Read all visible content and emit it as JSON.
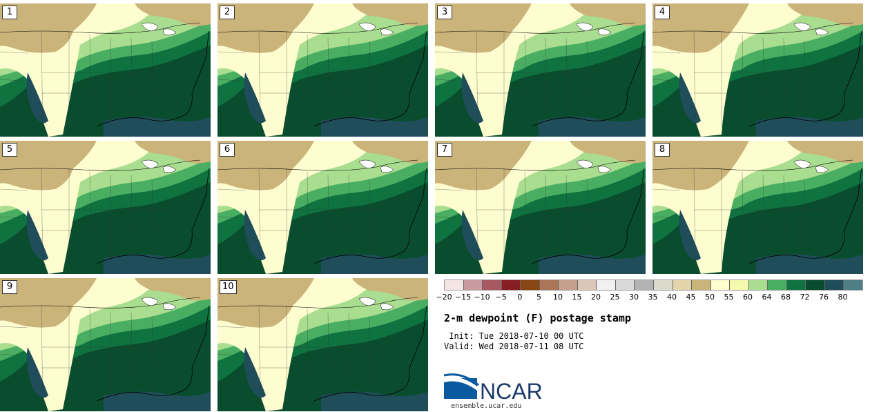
{
  "panels": [
    "1",
    "2",
    "3",
    "4",
    "5",
    "6",
    "7",
    "8",
    "9",
    "10"
  ],
  "colorbar": {
    "colors": [
      "#f4e4e4",
      "#c99aa0",
      "#a85860",
      "#861d22",
      "#8a4514",
      "#ab7658",
      "#c4a08c",
      "#dcc6b8",
      "#f1f1f1",
      "#d9d9d9",
      "#b3b3b3",
      "#dbdbcb",
      "#e4d4aa",
      "#cbb47a",
      "#fdfdd0",
      "#f5f9ad",
      "#a9dd90",
      "#4aae62",
      "#0f7340",
      "#0a4d2e",
      "#1f4d5a",
      "#4f7f86"
    ],
    "ticks": [
      "−20",
      "−15",
      "−10",
      "−5",
      "0",
      "5",
      "10",
      "15",
      "20",
      "25",
      "30",
      "35",
      "40",
      "45",
      "50",
      "55",
      "60",
      "64",
      "68",
      "72",
      "76",
      "80"
    ]
  },
  "title": "2-m dewpoint (F) postage stamp",
  "init": " Init: Tue 2018-07-10 00 UTC",
  "valid": "Valid: Wed 2018-07-11 08 UTC",
  "logo_text": "NCAR",
  "url": "ensemble.ucar.edu",
  "colors": {
    "ncar_blue": "#0a5aa0",
    "land_dry": "#cbb47a",
    "land_moist": "#0a4d2e"
  }
}
